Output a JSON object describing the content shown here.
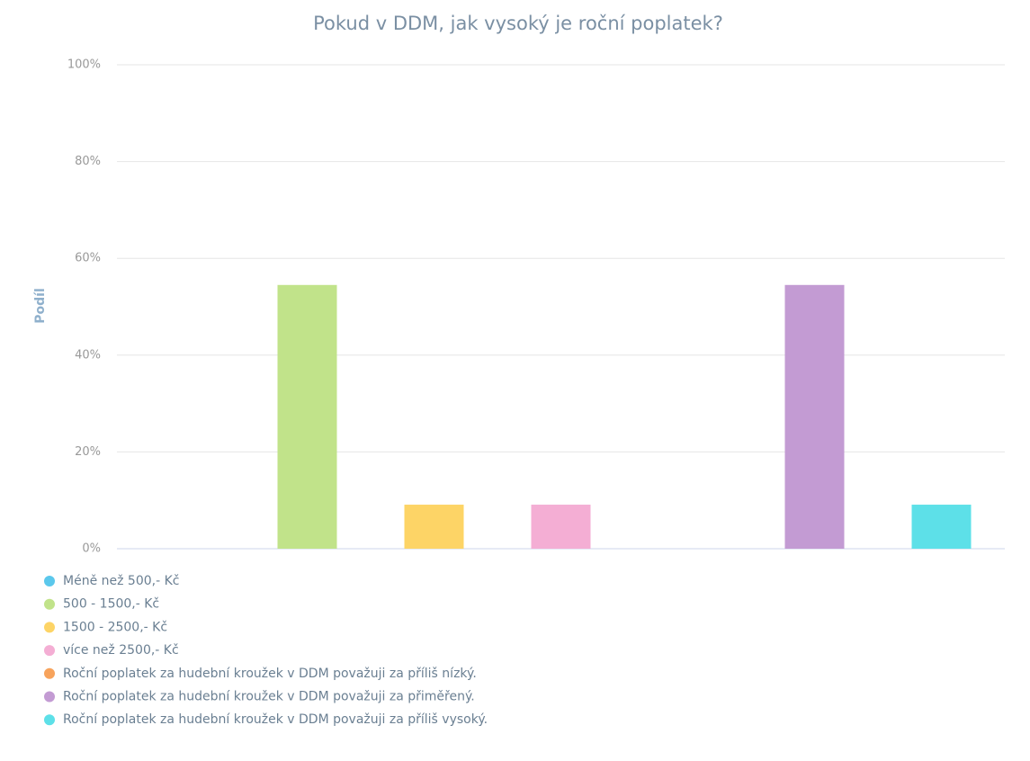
{
  "chart_data": {
    "type": "bar",
    "title": "Pokud v DDM, jak vysoký je roční poplatek?",
    "y_label": "Podíl",
    "categories": [
      "Méně než 500,- Kč",
      "500 - 1500,- Kč",
      "1500 - 2500,- Kč",
      "více než 2500,- Kč",
      "Roční poplatek za hudební kroužek v DDM považuji za příliš nízký.",
      "Roční poplatek za hudební kroužek v DDM považuji za přiměřený.",
      "Roční poplatek za hudební kroužek v DDM považuji za příliš vysoký."
    ],
    "values": [
      0,
      54.5,
      9.1,
      9.1,
      0,
      54.5,
      9.1
    ],
    "colors": [
      "#5bc8ec",
      "#c1e38a",
      "#fdd466",
      "#f4aed4",
      "#f7a35c",
      "#c39bd3",
      "#5de0e8"
    ],
    "ylim": [
      0,
      100
    ],
    "yticks": [
      {
        "value": 0,
        "label": "0%"
      },
      {
        "value": 20,
        "label": "20%"
      },
      {
        "value": 40,
        "label": "40%"
      },
      {
        "value": 60,
        "label": "60%"
      },
      {
        "value": 80,
        "label": "80%"
      },
      {
        "value": 100,
        "label": "100%"
      }
    ],
    "grid": true
  }
}
